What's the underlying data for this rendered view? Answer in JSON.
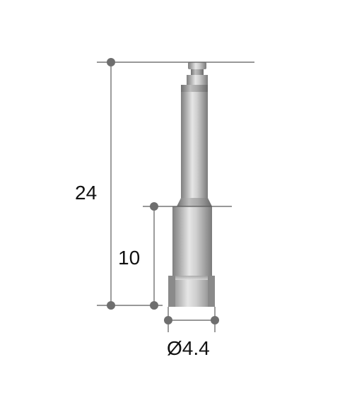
{
  "dimensions": {
    "total_length": "24",
    "head_length": "10",
    "diameter": "Ø4.4"
  },
  "colors": {
    "dimension_line": "#5a5a5a",
    "dimension_dot": "#6e6e6e",
    "metal_light": "#d9d9d9",
    "metal_dark": "#7a7a7a"
  }
}
